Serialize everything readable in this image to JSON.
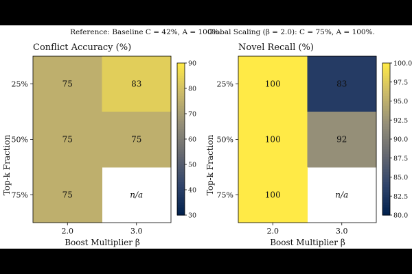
{
  "reference_note": "Reference:  Baseline C = 42%,  A = 100%.",
  "global_note": "Global Scaling (β = 2.0): C = 75%,  A = 100%.",
  "colormap": [
    "#00204d",
    "#31446b",
    "#666970",
    "#958f78",
    "#cbba69",
    "#ffea46"
  ],
  "chart_data": [
    {
      "type": "heatmap",
      "title": "Conflict Accuracy (%)",
      "xlabel": "Boost Multiplier β",
      "ylabel": "Top-k Fraction",
      "x_categories": [
        "2.0",
        "3.0"
      ],
      "y_categories": [
        "25%",
        "50%",
        "75%"
      ],
      "values": [
        [
          75,
          83
        ],
        [
          75,
          75
        ],
        [
          75,
          null
        ]
      ],
      "cell_labels": [
        [
          "75",
          "83"
        ],
        [
          "75",
          "75"
        ],
        [
          "75",
          "n/a"
        ]
      ],
      "colorbar": {
        "min": 30,
        "max": 90,
        "ticks": [
          "30",
          "40",
          "50",
          "60",
          "70",
          "80",
          "90"
        ]
      }
    },
    {
      "type": "heatmap",
      "title": "Novel Recall (%)",
      "xlabel": "Boost Multiplier β",
      "ylabel": "Top-k Fraction",
      "x_categories": [
        "2.0",
        "3.0"
      ],
      "y_categories": [
        "25%",
        "50%",
        "75%"
      ],
      "values": [
        [
          100,
          83
        ],
        [
          100,
          92
        ],
        [
          100,
          null
        ]
      ],
      "cell_labels": [
        [
          "100",
          "83"
        ],
        [
          "100",
          "92"
        ],
        [
          "100",
          "n/a"
        ]
      ],
      "colorbar": {
        "min": 80,
        "max": 100,
        "ticks": [
          "80.0",
          "82.5",
          "85.0",
          "87.5",
          "90.0",
          "92.5",
          "95.0",
          "97.5",
          "100.0"
        ]
      }
    }
  ]
}
